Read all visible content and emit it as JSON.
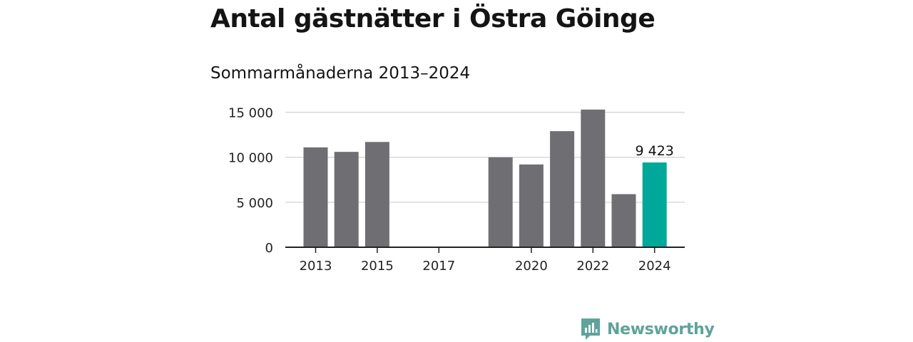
{
  "title": "Antal gästnätter i Östra Göinge",
  "subtitle": "Sommarmånaderna 2013–2024",
  "brand": {
    "name": "Newsworthy",
    "color": "#5fa39a",
    "icon": "newsworthy-logo-icon"
  },
  "colors": {
    "bar": "#6f6e73",
    "highlight": "#00a89a",
    "grid": "#d9d9d9",
    "axis": "#222222"
  },
  "chart_data": {
    "type": "bar",
    "categories": [
      "2013",
      "2014",
      "2015",
      "2016",
      "2017",
      "2018",
      "2019",
      "2020",
      "2021",
      "2022",
      "2023",
      "2024"
    ],
    "values": [
      11100,
      10600,
      11700,
      null,
      null,
      null,
      10000,
      9200,
      12900,
      15300,
      5900,
      9423
    ],
    "highlight_index": 11,
    "x_tick_labels": [
      "2013",
      "2015",
      "2017",
      "2020",
      "2022",
      "2024"
    ],
    "y_ticks": [
      0,
      5000,
      10000,
      15000
    ],
    "y_tick_labels": [
      "0",
      "5 000",
      "10 000",
      "15 000"
    ],
    "ylim": [
      0,
      15600
    ],
    "grid": true,
    "data_labels": [
      {
        "category": "2024",
        "text": "9 423"
      }
    ],
    "xlabel": "",
    "ylabel": ""
  }
}
